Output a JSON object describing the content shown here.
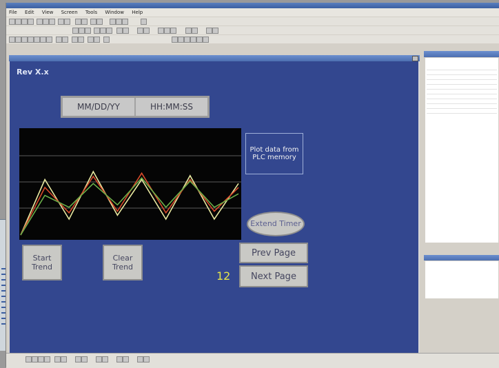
{
  "app": {
    "menu": [
      "File",
      "Edit",
      "View",
      "Screen",
      "Tools",
      "Window",
      "Help"
    ]
  },
  "hmi": {
    "rev_label": "Rev X.x",
    "date_format": "MM/DD/YY",
    "time_format": "HH:MM:SS",
    "plot_note": "Plot data from PLC memory",
    "extend_timer": "Extend Timer",
    "start_trend": "Start Trend",
    "clear_trend": "Clear Trend",
    "prev_page": "Prev Page",
    "next_page": "Next Page",
    "page_number": "12"
  },
  "chart_data": {
    "type": "line",
    "series": [
      {
        "color": "#e8e8a0",
        "values": [
          0,
          70,
          20,
          80,
          25,
          70,
          20,
          75,
          20,
          65
        ]
      },
      {
        "color": "#d84a2a",
        "values": [
          0,
          60,
          28,
          74,
          30,
          78,
          28,
          70,
          30,
          60
        ]
      },
      {
        "color": "#6ab04a",
        "values": [
          0,
          50,
          35,
          65,
          38,
          72,
          35,
          68,
          35,
          52
        ]
      }
    ],
    "grid": true
  },
  "colors": {
    "screen_bg": "#33478f",
    "accent": "#e6e64a"
  }
}
